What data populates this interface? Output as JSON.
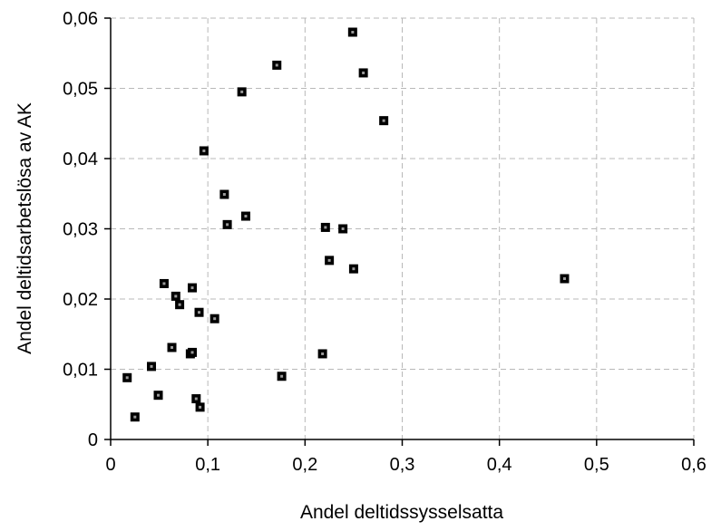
{
  "chart_data": {
    "type": "scatter",
    "title": "",
    "xlabel": "Andel deltidssysselsatta",
    "ylabel": "Andel deltidsarbetslösa av AK",
    "xlim": [
      0,
      0.6
    ],
    "ylim": [
      0,
      0.06
    ],
    "x_ticks": [
      0,
      0.1,
      0.2,
      0.3,
      0.4,
      0.5,
      0.6
    ],
    "x_tick_labels": [
      "0",
      "0,1",
      "0,2",
      "0,3",
      "0,4",
      "0,5",
      "0,6"
    ],
    "y_ticks": [
      0,
      0.01,
      0.02,
      0.03,
      0.04,
      0.05,
      0.06
    ],
    "y_tick_labels": [
      "0",
      "0,01",
      "0,02",
      "0,03",
      "0,04",
      "0,05",
      "0,06"
    ],
    "grid": true,
    "legend": "none",
    "marker": "square",
    "colors": {
      "marker": "#000000",
      "marker_center": "#9a9a9a",
      "grid": "#b8b8b8",
      "axis": "#000000"
    },
    "points": [
      {
        "x": 0.017,
        "y": 0.0088
      },
      {
        "x": 0.025,
        "y": 0.0032
      },
      {
        "x": 0.042,
        "y": 0.0104
      },
      {
        "x": 0.049,
        "y": 0.0063
      },
      {
        "x": 0.055,
        "y": 0.0222
      },
      {
        "x": 0.063,
        "y": 0.0131
      },
      {
        "x": 0.067,
        "y": 0.0204
      },
      {
        "x": 0.071,
        "y": 0.0192
      },
      {
        "x": 0.082,
        "y": 0.0122
      },
      {
        "x": 0.084,
        "y": 0.0124
      },
      {
        "x": 0.084,
        "y": 0.0216
      },
      {
        "x": 0.088,
        "y": 0.0058
      },
      {
        "x": 0.091,
        "y": 0.0181
      },
      {
        "x": 0.092,
        "y": 0.0046
      },
      {
        "x": 0.096,
        "y": 0.0411
      },
      {
        "x": 0.107,
        "y": 0.0172
      },
      {
        "x": 0.117,
        "y": 0.0349
      },
      {
        "x": 0.12,
        "y": 0.0306
      },
      {
        "x": 0.135,
        "y": 0.0495
      },
      {
        "x": 0.139,
        "y": 0.0318
      },
      {
        "x": 0.171,
        "y": 0.0533
      },
      {
        "x": 0.176,
        "y": 0.009
      },
      {
        "x": 0.218,
        "y": 0.0122
      },
      {
        "x": 0.221,
        "y": 0.0302
      },
      {
        "x": 0.225,
        "y": 0.0255
      },
      {
        "x": 0.239,
        "y": 0.03
      },
      {
        "x": 0.249,
        "y": 0.058
      },
      {
        "x": 0.25,
        "y": 0.0243
      },
      {
        "x": 0.26,
        "y": 0.0522
      },
      {
        "x": 0.281,
        "y": 0.0454
      },
      {
        "x": 0.467,
        "y": 0.0229
      }
    ]
  }
}
